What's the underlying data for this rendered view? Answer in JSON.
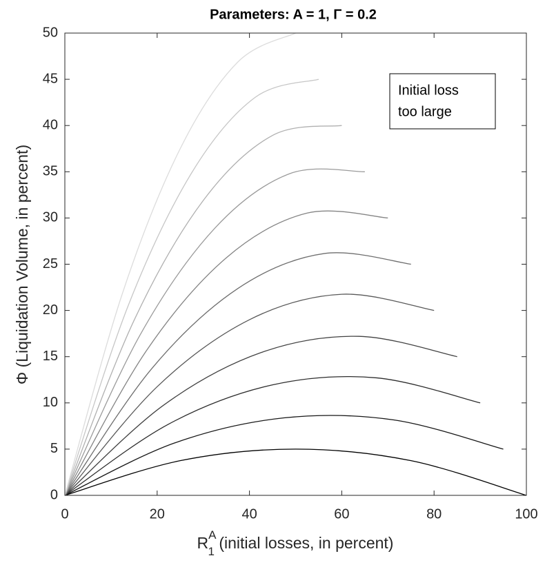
{
  "chart_data": {
    "type": "line",
    "title": "Parameters: A = 1, Γ = 0.2",
    "xlabel": {
      "base": "R",
      "sup": "A",
      "sub": "1",
      "text": " (initial losses, in percent)"
    },
    "ylabel": "Φ (Liquidation Volume, in percent)",
    "annotation": [
      "Initial loss",
      "too large"
    ],
    "xlim": [
      0,
      100
    ],
    "xticks": [
      0,
      20,
      40,
      60,
      80,
      100
    ],
    "ylim": [
      0,
      50
    ],
    "yticks": [
      0,
      5,
      10,
      15,
      20,
      25,
      30,
      35,
      40,
      45,
      50
    ],
    "grid": false,
    "series": [
      {
        "color": "#000000",
        "x": [
          0,
          25,
          50,
          75,
          100
        ],
        "values": [
          0,
          3.75,
          5,
          3.75,
          0
        ]
      },
      {
        "color": "#161616",
        "x": [
          0,
          23.75,
          47.5,
          71.25,
          95
        ],
        "values": [
          0,
          5.66,
          8.38,
          8.16,
          5
        ]
      },
      {
        "color": "#2c2c2c",
        "x": [
          0,
          22.5,
          45,
          67.5,
          90
        ],
        "values": [
          0,
          7.71,
          11.95,
          12.71,
          10
        ]
      },
      {
        "color": "#424242",
        "x": [
          0,
          21.25,
          42.5,
          63.75,
          85
        ],
        "values": [
          0,
          9.7,
          15.44,
          17.2,
          15
        ]
      },
      {
        "color": "#585858",
        "x": [
          0,
          20,
          40,
          60,
          80
        ],
        "values": [
          0,
          11.75,
          19,
          21.75,
          20
        ]
      },
      {
        "color": "#6e6e6e",
        "x": [
          0,
          18.75,
          37.5,
          56.25,
          75
        ],
        "values": [
          0,
          13.66,
          22.38,
          26.16,
          25
        ]
      },
      {
        "color": "#848484",
        "x": [
          0,
          17.5,
          35,
          52.5,
          70
        ],
        "values": [
          0,
          15.52,
          25.7,
          30.53,
          30
        ]
      },
      {
        "color": "#9a9a9a",
        "x": [
          0,
          16.25,
          32.5,
          48.75,
          65
        ],
        "values": [
          0,
          17.3,
          28.9,
          34.8,
          35
        ]
      },
      {
        "color": "#b0b0b0",
        "x": [
          0,
          15,
          30,
          45,
          60
        ],
        "values": [
          0,
          18.93,
          31.9,
          38.93,
          40
        ]
      },
      {
        "color": "#c6c6c6",
        "x": [
          0,
          13.75,
          27.5,
          41.25,
          55
        ],
        "values": [
          0,
          20.55,
          34.9,
          43.05,
          45
        ]
      },
      {
        "color": "#dcdcdc",
        "x": [
          0,
          12.5,
          25,
          37.5,
          50
        ],
        "values": [
          0,
          21.88,
          37.5,
          46.88,
          50
        ]
      }
    ]
  }
}
